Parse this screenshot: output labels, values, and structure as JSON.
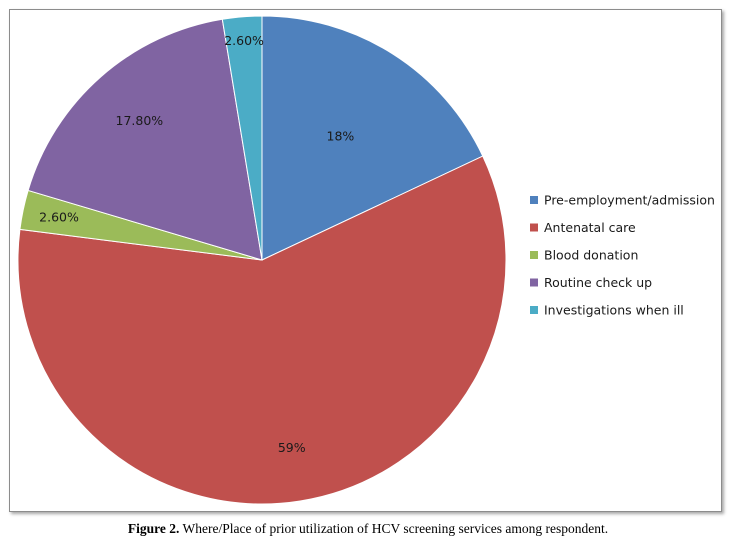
{
  "chart_data": {
    "type": "pie",
    "title": "",
    "slices": [
      {
        "name": "Pre-employment/admission",
        "value": 18.0,
        "label": "18%",
        "color": "#4f81bd"
      },
      {
        "name": "Antenatal care",
        "value": 59.0,
        "label": "59%",
        "color": "#c0504d"
      },
      {
        "name": "Blood donation",
        "value": 2.6,
        "label": "2.60%",
        "color": "#9bbb59"
      },
      {
        "name": "Routine check up",
        "value": 17.8,
        "label": "17.80%",
        "color": "#8064a2"
      },
      {
        "name": "Investigations when ill",
        "value": 2.6,
        "label": "2.60%",
        "color": "#4bacc6"
      }
    ],
    "legend_position": "right"
  },
  "caption": {
    "label": "Figure 2.",
    "text": " Where/Place of prior utilization of HCV screening services among respondent."
  }
}
